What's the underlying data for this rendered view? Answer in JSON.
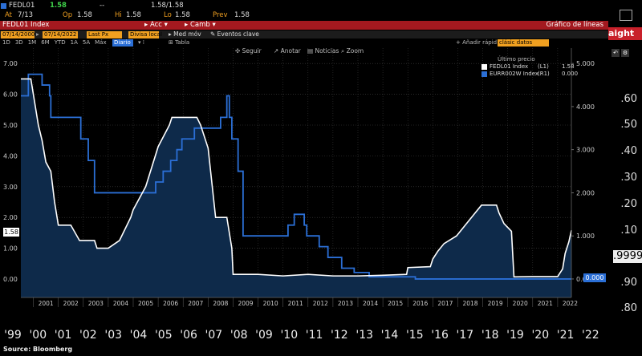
{
  "header": {
    "ticker": "FEDL01",
    "last": "1.58",
    "change": "--",
    "bid_ask": "1.58/1.58",
    "at_label": "At",
    "at_value": "7/13",
    "op_label": "Op",
    "op_value": "1.58",
    "hi_label": "Hi",
    "hi_value": "1.58",
    "lo_label": "Lo",
    "lo_value": "1.58",
    "prev_label": "Prev",
    "prev_value": "1.58"
  },
  "titlebar": {
    "security": "FEDL01 Index",
    "acc_label": "Acc",
    "camb_label": "Camb",
    "chart_label": "Gráfico de líneas"
  },
  "fields": {
    "start_date": "07/14/2000",
    "end_date": "07/14/2022",
    "last_px": "Last Px",
    "divisa": "Divisa local",
    "med_mov": "Med móv",
    "eventos": "Eventos clave",
    "periods": [
      "1D",
      "3D",
      "1M",
      "6M",
      "YTD",
      "1A",
      "5A",
      "Máx"
    ],
    "diario": "Diario",
    "tabla": "Tabla",
    "anadir": "Añadir rápid",
    "clasic": "clásic datos"
  },
  "toolbar": {
    "seguir": "Seguir",
    "anotar": "Anotar",
    "noticias": "Noticias",
    "zoom": "Zoom"
  },
  "legend": {
    "header": "Último precio",
    "item1_name": "FEDL01 Index",
    "item1_axis": "(L1)",
    "item1_value": "1.58",
    "item2_name": "EURR002W Index",
    "item2_axis": "(R1)",
    "item2_value": "0.000"
  },
  "badges": {
    "left_value": "1.58",
    "right_value": "0.000"
  },
  "right_panel": {
    "tab_label": "aight",
    "ticks": [
      ".60",
      ".50",
      ".40",
      ".30",
      ".20",
      ".10",
      ".9999",
      ".90",
      ".80"
    ],
    "box_value": ".9999"
  },
  "bottom_axis": {
    "years": [
      "'99",
      "'00",
      "'01",
      "'02",
      "'03",
      "'04",
      "'05",
      "'06",
      "'07",
      "'08",
      "'09",
      "'10",
      "'11",
      "'12",
      "'13",
      "'14",
      "'15",
      "'16",
      "'17",
      "'18",
      "'19",
      "'20",
      "'21",
      "'22"
    ]
  },
  "source": "Source: Bloomberg",
  "colors": {
    "fed_line": "#ffffff",
    "ecb_line": "#2b6fd6",
    "area_fill": "#0e2a4a",
    "background": "#000000",
    "header_bar": "#a3191f",
    "accent": "#f0a020"
  },
  "chart_data": {
    "type": "line",
    "xlim": [
      2000.5,
      2022.55
    ],
    "x_ticks": [
      "2001",
      "2002",
      "2003",
      "2004",
      "2005",
      "2006",
      "2007",
      "2008",
      "2009",
      "2010",
      "2011",
      "2012",
      "2013",
      "2014",
      "2015",
      "2016",
      "2017",
      "2018",
      "2019",
      "2020",
      "2021",
      "2022"
    ],
    "left_axis": {
      "ylim": [
        -0.6,
        7.5
      ],
      "ticks": [
        "0.00",
        "1.00",
        "2.00",
        "3.00",
        "4.00",
        "5.00",
        "6.00",
        "7.00"
      ]
    },
    "right_axis": {
      "ylim": [
        -0.429,
        5.357
      ],
      "ticks": [
        "0.000",
        "1.000",
        "2.000",
        "3.000",
        "4.000",
        "5.000"
      ]
    },
    "series": [
      {
        "name": "FEDL01 Index",
        "axis": "left",
        "x": [
          2000.5,
          2000.9,
          2001.0,
          2001.1,
          2001.2,
          2001.35,
          2001.5,
          2001.7,
          2001.85,
          2001.95,
          2002.0,
          2002.5,
          2002.85,
          2003.0,
          2003.45,
          2003.55,
          2004.0,
          2004.45,
          2004.6,
          2004.9,
          2005.0,
          2005.5,
          2006.0,
          2006.45,
          2006.55,
          2007.0,
          2007.55,
          2007.7,
          2007.9,
          2008.0,
          2008.1,
          2008.3,
          2008.5,
          2008.75,
          2008.85,
          2008.95,
          2009.0,
          2010.0,
          2011.0,
          2012.0,
          2013.0,
          2014.0,
          2015.0,
          2015.95,
          2016.0,
          2016.9,
          2017.0,
          2017.2,
          2017.45,
          2017.95,
          2018.2,
          2018.45,
          2018.7,
          2018.95,
          2019.55,
          2019.65,
          2019.85,
          2020.15,
          2020.25,
          2021.0,
          2022.0,
          2022.2,
          2022.3,
          2022.45,
          2022.55
        ],
        "y": [
          6.5,
          6.5,
          6.0,
          5.5,
          5.0,
          4.5,
          3.8,
          3.5,
          2.5,
          2.0,
          1.75,
          1.75,
          1.25,
          1.25,
          1.25,
          1.0,
          1.0,
          1.25,
          1.5,
          2.0,
          2.25,
          3.0,
          4.3,
          5.0,
          5.25,
          5.25,
          5.25,
          5.0,
          4.5,
          4.25,
          3.5,
          2.0,
          2.0,
          2.0,
          1.5,
          1.0,
          0.15,
          0.15,
          0.1,
          0.15,
          0.1,
          0.1,
          0.12,
          0.15,
          0.37,
          0.4,
          0.65,
          0.9,
          1.15,
          1.4,
          1.65,
          1.9,
          2.15,
          2.4,
          2.4,
          2.15,
          1.8,
          1.55,
          0.07,
          0.08,
          0.08,
          0.33,
          0.83,
          1.21,
          1.58
        ]
      },
      {
        "name": "EURR002W Index",
        "axis": "right",
        "x": [
          2000.5,
          2000.8,
          2001.35,
          2001.65,
          2001.7,
          2002.9,
          2003.2,
          2003.45,
          2005.9,
          2006.2,
          2006.5,
          2006.75,
          2006.95,
          2007.45,
          2008.5,
          2008.75,
          2008.85,
          2008.95,
          2009.2,
          2009.4,
          2011.2,
          2011.45,
          2011.85,
          2011.95,
          2012.45,
          2012.8,
          2013.35,
          2013.85,
          2014.45,
          2014.7,
          2015.0,
          2016.2,
          2016.3,
          2022.55
        ],
        "y": [
          4.25,
          4.75,
          4.5,
          4.25,
          3.75,
          3.25,
          2.75,
          2.0,
          2.25,
          2.5,
          2.75,
          3.0,
          3.25,
          3.5,
          3.75,
          4.25,
          3.75,
          3.25,
          2.5,
          1.0,
          1.25,
          1.5,
          1.25,
          1.0,
          0.75,
          0.5,
          0.25,
          0.15,
          0.05,
          0.05,
          0.05,
          0.05,
          0.0,
          0.0
        ]
      }
    ]
  }
}
